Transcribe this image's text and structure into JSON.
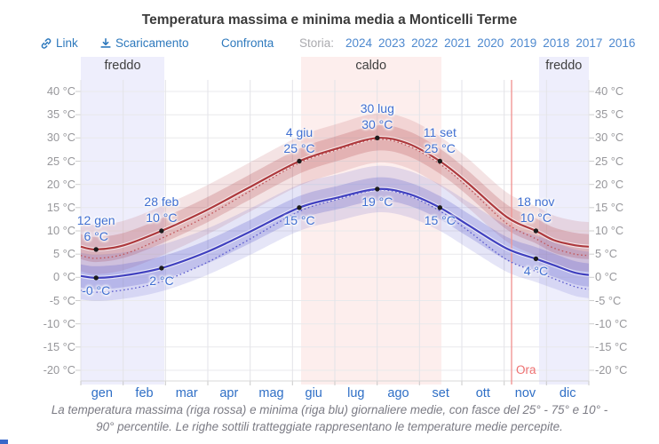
{
  "title": "Temperatura massima e minima media a Monticelli Terme",
  "toolbar": {
    "link": "Link",
    "download": "Scaricamento",
    "compare": "Confronta",
    "history_label": "Storia:",
    "years": [
      "2024",
      "2023",
      "2022",
      "2021",
      "2020",
      "2019",
      "2018",
      "2017",
      "2016"
    ]
  },
  "chart_data": {
    "type": "line",
    "title": "Temperatura massima e minima media a Monticelli Terme",
    "unit": "°C",
    "ylim": [
      -20,
      40
    ],
    "ytick_step": 5,
    "grid": true,
    "months": [
      "gen",
      "feb",
      "mar",
      "apr",
      "mag",
      "giu",
      "lug",
      "ago",
      "set",
      "ott",
      "nov",
      "dic"
    ],
    "seasons": [
      {
        "label": "freddo",
        "type": "cold",
        "start_day": 0,
        "end_day": 60
      },
      {
        "label": "caldo",
        "type": "hot",
        "start_day": 158,
        "end_day": 259
      },
      {
        "label": "freddo",
        "type": "cold",
        "start_day": 329,
        "end_day": 365
      }
    ],
    "now": {
      "day": 309.5,
      "label": "Ora"
    },
    "series": [
      {
        "name": "massima media",
        "color": "#ad393d",
        "style": "solid",
        "points": [
          [
            0,
            6.6
          ],
          [
            11,
            6.0
          ],
          [
            31,
            6.9
          ],
          [
            58,
            10.0
          ],
          [
            90,
            14.4
          ],
          [
            120,
            19.2
          ],
          [
            157,
            25.0
          ],
          [
            185,
            27.8
          ],
          [
            213,
            30.0
          ],
          [
            235,
            28.8
          ],
          [
            258,
            25.0
          ],
          [
            278,
            20.3
          ],
          [
            306,
            13.0
          ],
          [
            327,
            10.0
          ],
          [
            340,
            8.0
          ],
          [
            355,
            6.9
          ],
          [
            365,
            6.6
          ]
        ]
      },
      {
        "name": "minima media",
        "color": "#4040bf",
        "style": "solid",
        "points": [
          [
            0,
            0.3
          ],
          [
            11,
            -0.1
          ],
          [
            31,
            0.4
          ],
          [
            58,
            2.0
          ],
          [
            90,
            5.4
          ],
          [
            120,
            9.6
          ],
          [
            157,
            15.0
          ],
          [
            185,
            17.2
          ],
          [
            213,
            19.0
          ],
          [
            235,
            18.0
          ],
          [
            258,
            15.0
          ],
          [
            278,
            11.3
          ],
          [
            306,
            6.2
          ],
          [
            327,
            4.0
          ],
          [
            340,
            2.6
          ],
          [
            355,
            1.0
          ],
          [
            365,
            0.5
          ]
        ]
      },
      {
        "name": "massima percepita",
        "color": "#c0555a",
        "style": "dotted",
        "points": [
          [
            0,
            4.7
          ],
          [
            11,
            4.1
          ],
          [
            31,
            5.0
          ],
          [
            58,
            8.4
          ],
          [
            90,
            13.1
          ],
          [
            120,
            18.3
          ],
          [
            157,
            24.6
          ],
          [
            185,
            27.5
          ],
          [
            213,
            29.7
          ],
          [
            235,
            28.3
          ],
          [
            258,
            24.4
          ],
          [
            278,
            19.4
          ],
          [
            306,
            11.6
          ],
          [
            327,
            8.3
          ],
          [
            340,
            6.3
          ],
          [
            355,
            5.0
          ],
          [
            365,
            4.7
          ]
        ]
      },
      {
        "name": "minima percepita",
        "color": "#5a5ace",
        "style": "dotted",
        "points": [
          [
            0,
            -2.8
          ],
          [
            11,
            -3.2
          ],
          [
            31,
            -2.7
          ],
          [
            58,
            -0.9
          ],
          [
            90,
            3.1
          ],
          [
            120,
            8.0
          ],
          [
            157,
            14.2
          ],
          [
            185,
            16.8
          ],
          [
            213,
            18.8
          ],
          [
            235,
            17.6
          ],
          [
            258,
            14.3
          ],
          [
            278,
            10.1
          ],
          [
            306,
            3.8
          ],
          [
            327,
            1.3
          ],
          [
            340,
            -0.3
          ],
          [
            355,
            -2.0
          ],
          [
            365,
            -2.6
          ]
        ]
      }
    ],
    "percentile_bands": [
      {
        "series": 0,
        "inner_halfwidth": 2.7,
        "outer_halfwidth": 5.3,
        "color": "180,70,75"
      },
      {
        "series": 1,
        "inner_halfwidth": 2.5,
        "outer_halfwidth": 5.0,
        "color": "80,80,200"
      }
    ],
    "max_labels": [
      {
        "date": "12 gen",
        "label": "6 °C",
        "day": 11,
        "temp": 6
      },
      {
        "date": "28 feb",
        "label": "10 °C",
        "day": 58,
        "temp": 10
      },
      {
        "date": "4 giu",
        "label": "25 °C",
        "day": 157,
        "temp": 25
      },
      {
        "date": "30 lug",
        "label": "30 °C",
        "day": 213,
        "temp": 30
      },
      {
        "date": "11 set",
        "label": "25 °C",
        "day": 258,
        "temp": 25
      },
      {
        "date": "18 nov",
        "label": "10 °C",
        "day": 327,
        "temp": 10
      }
    ],
    "min_labels": [
      {
        "label": "-0 °C",
        "day": 11,
        "temp": -0.1
      },
      {
        "label": "2 °C",
        "day": 58,
        "temp": 2
      },
      {
        "label": "15 °C",
        "day": 157,
        "temp": 15
      },
      {
        "label": "19 °C",
        "day": 213,
        "temp": 19
      },
      {
        "label": "15 °C",
        "day": 258,
        "temp": 15
      },
      {
        "label": "4 °C",
        "day": 327,
        "temp": 4
      }
    ]
  },
  "caption": {
    "line1": "La temperatura massima (riga rossa) e minima (riga blu) giornaliere medie, con fasce del 25° - 75° e 10° -",
    "line2": "90° percentile. Le righe sottili tratteggiate rappresentano le temperature medie percepite."
  },
  "colors": {
    "max_line": "#ad393d",
    "min_line": "#4040bf",
    "now_line": "#f19796",
    "cold_band": "rgba(90,88,226,0.10)",
    "hot_band": "rgba(236,88,74,0.10)",
    "link_blue": "#2e79bd",
    "annotation_blue": "#3f6fd1"
  }
}
